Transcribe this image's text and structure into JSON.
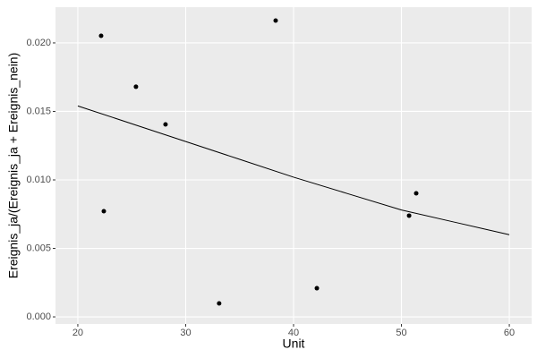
{
  "chart_data": {
    "type": "scatter",
    "x_label": "Unit",
    "y_label": "Ereignis_ja/(Ereignis_ja + Ereignis_nein)",
    "xlim": [
      17.93,
      62.07
    ],
    "ylim": [
      -0.00052,
      0.02261
    ],
    "xticks": [
      20,
      30,
      40,
      50,
      60
    ],
    "yticks": [
      {
        "value": 0,
        "label": "0.000"
      },
      {
        "value": 0.005,
        "label": "0.005"
      },
      {
        "value": 0.01,
        "label": "0.010"
      },
      {
        "value": 0.015,
        "label": "0.015"
      },
      {
        "value": 0.02,
        "label": "0.020"
      }
    ],
    "grid": true,
    "series": [
      {
        "kind": "points",
        "color": "#000000",
        "x": [
          22.16,
          25.39,
          28.13,
          22.41,
          33.1,
          38.34,
          42.16,
          50.71,
          51.37
        ],
        "values": [
          0.02052,
          0.0168,
          0.01405,
          0.00771,
          0.00098,
          0.02163,
          0.00209,
          0.00739,
          0.00902
        ]
      },
      {
        "kind": "line",
        "color": "#000000",
        "x": [
          20,
          25,
          30,
          35,
          40,
          45,
          50,
          55,
          60
        ],
        "values": [
          0.0154,
          0.0141,
          0.0128,
          0.0115,
          0.0102,
          0.009,
          0.0078,
          0.0069,
          0.006
        ]
      }
    ]
  }
}
